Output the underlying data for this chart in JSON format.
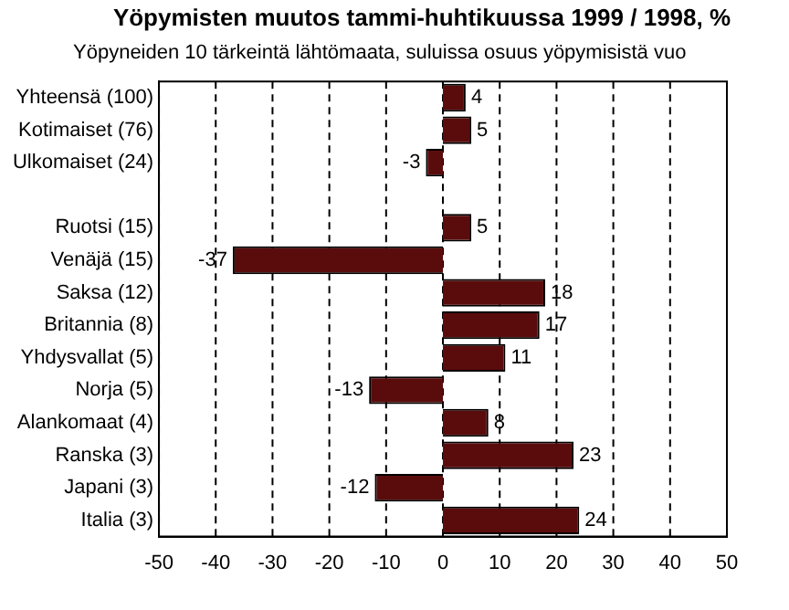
{
  "chart_data": {
    "type": "bar",
    "orientation": "horizontal",
    "title": "Yöpymisten muutos tammi-huhtikuussa 1999 / 1998, %",
    "subtitle": "Yöpyneiden 10 tärkeintä lähtömaata, suluissa osuus yöpymisistä vuo",
    "categories": [
      "Yhteensä (100)",
      "Kotimaiset (76)",
      "Ulkomaiset (24)",
      null,
      "Ruotsi (15)",
      "Venäjä (15)",
      "Saksa (12)",
      "Britannia (8)",
      "Yhdysvallat (5)",
      "Norja (5)",
      "Alankomaat (4)",
      "Ranska (3)",
      "Japani (3)",
      "Italia (3)"
    ],
    "values": [
      4,
      5,
      -3,
      null,
      5,
      -37,
      18,
      17,
      11,
      -13,
      8,
      23,
      -12,
      24
    ],
    "color": "#5a0c0c",
    "data_labels": true,
    "grid": "x",
    "line_style": "dashed",
    "xlim": [
      -50,
      50
    ],
    "xticks": [
      -50,
      -40,
      -30,
      -20,
      -10,
      0,
      10,
      20,
      30,
      40,
      50
    ]
  }
}
